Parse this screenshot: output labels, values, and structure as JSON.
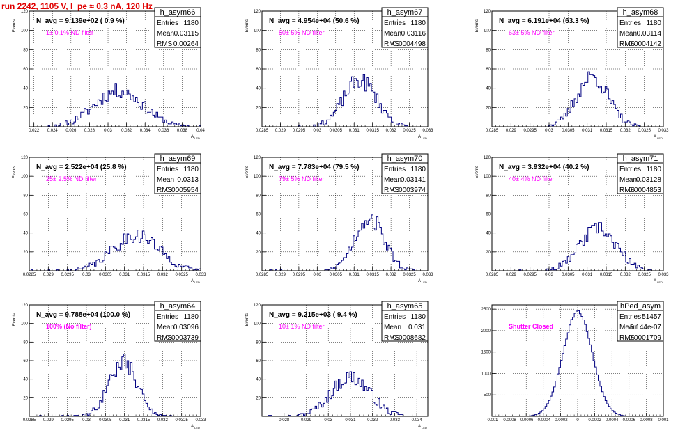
{
  "page": {
    "title": "run 2242,  1105 V, I_pe ≈ 0.3 nA, 120 Hz"
  },
  "chart_data": [
    {
      "type": "histogram",
      "name": "h_asym66",
      "navg": "N_avg = 9.139e+02 ( 0.9 %)",
      "filter": "1± 0.1% ND filter",
      "stats": {
        "entries": "1180",
        "mean": "0.03115",
        "rms": "0.00264"
      },
      "xlabel": "A",
      "xlabel_sub": "LED",
      "ylabel": "Events",
      "xlim": [
        0.0215,
        0.04
      ],
      "ylim": [
        0,
        120
      ],
      "xticks": [
        "0.022",
        "0.024",
        "0.026",
        "0.028",
        "0.03",
        "0.032",
        "0.034",
        "0.036",
        "0.038",
        "0.04"
      ],
      "yticks": [
        "20",
        "40",
        "60",
        "80",
        "100",
        "120"
      ],
      "gen": {
        "mean": 0.03115,
        "sigma": 0.00264,
        "peak": 37,
        "bins": 100,
        "seed": 11
      }
    },
    {
      "type": "histogram",
      "name": "h_asym67",
      "navg": "N_avg = 4.954e+04 (50.6 %)",
      "filter": "50± 5% ND filter",
      "stats": {
        "entries": "1180",
        "mean": "0.03116",
        "rms": "0.0004498"
      },
      "xlabel": "A",
      "xlabel_sub": "LED",
      "ylabel": "Events",
      "xlim": [
        0.0285,
        0.033
      ],
      "ylim": [
        0,
        120
      ],
      "xticks": [
        "0.0285",
        "0.029",
        "0.0295",
        "0.03",
        "0.0305",
        "0.031",
        "0.0315",
        "0.032",
        "0.0325",
        "0.033"
      ],
      "yticks": [
        "20",
        "40",
        "60",
        "80",
        "100",
        "120"
      ],
      "gen": {
        "mean": 0.03116,
        "sigma": 0.00045,
        "peak": 48,
        "bins": 100,
        "seed": 23
      }
    },
    {
      "type": "histogram",
      "name": "h_asym68",
      "navg": "N_avg = 6.191e+04 (63.3 %)",
      "filter": "63± 5% ND filter",
      "stats": {
        "entries": "1180",
        "mean": "0.03114",
        "rms": "0.0004142"
      },
      "xlabel": "A",
      "xlabel_sub": "LED",
      "ylabel": "Events",
      "xlim": [
        0.0285,
        0.033
      ],
      "ylim": [
        0,
        120
      ],
      "xticks": [
        "0.0285",
        "0.029",
        "0.0295",
        "0.03",
        "0.0305",
        "0.031",
        "0.0315",
        "0.032",
        "0.0325",
        "0.033"
      ],
      "yticks": [
        "20",
        "40",
        "60",
        "80",
        "100",
        "120"
      ],
      "gen": {
        "mean": 0.03114,
        "sigma": 0.00041,
        "peak": 52,
        "bins": 100,
        "seed": 37
      }
    },
    {
      "type": "histogram",
      "name": "h_asym69",
      "navg": "N_avg = 2.522e+04 (25.8 %)",
      "filter": "25± 2.5% ND filter",
      "stats": {
        "entries": "1180",
        "mean": "0.0313",
        "rms": "0.0005954"
      },
      "xlabel": "A",
      "xlabel_sub": "LED",
      "ylabel": "Events",
      "xlim": [
        0.0285,
        0.033
      ],
      "ylim": [
        0,
        120
      ],
      "xticks": [
        "0.0285",
        "0.029",
        "0.0295",
        "0.03",
        "0.0305",
        "0.031",
        "0.0315",
        "0.032",
        "0.0325",
        "0.033"
      ],
      "yticks": [
        "20",
        "40",
        "60",
        "80",
        "100",
        "120"
      ],
      "gen": {
        "mean": 0.0313,
        "sigma": 0.0006,
        "peak": 38,
        "bins": 100,
        "seed": 41
      }
    },
    {
      "type": "histogram",
      "name": "h_asym70",
      "navg": "N_avg = 7.783e+04 (79.5 %)",
      "filter": "79± 5% ND filter",
      "stats": {
        "entries": "1180",
        "mean": "0.03141",
        "rms": "0.0003974"
      },
      "xlabel": "A",
      "xlabel_sub": "LED",
      "ylabel": "Events",
      "xlim": [
        0.0285,
        0.033
      ],
      "ylim": [
        0,
        120
      ],
      "xticks": [
        "0.0285",
        "0.029",
        "0.0295",
        "0.03",
        "0.0305",
        "0.031",
        "0.0315",
        "0.032",
        "0.0325",
        "0.033"
      ],
      "yticks": [
        "20",
        "40",
        "60",
        "80",
        "100",
        "120"
      ],
      "gen": {
        "mean": 0.03141,
        "sigma": 0.0004,
        "peak": 56,
        "bins": 100,
        "seed": 53
      }
    },
    {
      "type": "histogram",
      "name": "h_asym71",
      "navg": "N_avg = 3.932e+04 (40.2 %)",
      "filter": "40± 4% ND filter",
      "stats": {
        "entries": "1180",
        "mean": "0.03128",
        "rms": "0.0004853"
      },
      "xlabel": "A",
      "xlabel_sub": "LED",
      "ylabel": "Events",
      "xlim": [
        0.0285,
        0.033
      ],
      "ylim": [
        0,
        120
      ],
      "xticks": [
        "0.0285",
        "0.029",
        "0.0295",
        "0.03",
        "0.0305",
        "0.031",
        "0.0315",
        "0.032",
        "0.0325",
        "0.033"
      ],
      "yticks": [
        "20",
        "40",
        "60",
        "80",
        "100",
        "120"
      ],
      "gen": {
        "mean": 0.03128,
        "sigma": 0.00048,
        "peak": 44,
        "bins": 100,
        "seed": 67
      }
    },
    {
      "type": "histogram",
      "name": "h_asym64",
      "navg": "N_avg = 9.788e+04 (100.0 %)",
      "filter": "100% (No filter)",
      "filter_bold": true,
      "stats": {
        "entries": "1180",
        "mean": "0.03096",
        "rms": "0.0003739"
      },
      "xlabel": "A",
      "xlabel_sub": "LED",
      "ylabel": "Events",
      "xlim": [
        0.0285,
        0.033
      ],
      "ylim": [
        0,
        120
      ],
      "xticks": [
        "0.0285",
        "0.029",
        "0.0295",
        "0.03",
        "0.0305",
        "0.031",
        "0.0315",
        "0.032",
        "0.0325",
        "0.033"
      ],
      "yticks": [
        "20",
        "40",
        "60",
        "80",
        "100",
        "120"
      ],
      "gen": {
        "mean": 0.03096,
        "sigma": 0.00037,
        "peak": 58,
        "bins": 100,
        "seed": 79
      }
    },
    {
      "type": "histogram",
      "name": "h_asym65",
      "navg": "N_avg = 9.215e+03 ( 9.4 %)",
      "filter": "10± 1% ND filter",
      "stats": {
        "entries": "1180",
        "mean": "0.031",
        "rms": "0.0008682"
      },
      "xlabel": "A",
      "xlabel_sub": "LED",
      "ylabel": "Events",
      "xlim": [
        0.027,
        0.0345
      ],
      "ylim": [
        0,
        120
      ],
      "xticks": [
        "0.028",
        "0.029",
        "0.03",
        "0.031",
        "0.032",
        "0.033",
        "0.034"
      ],
      "yticks": [
        "20",
        "40",
        "60",
        "80",
        "100",
        "120"
      ],
      "gen": {
        "mean": 0.031,
        "sigma": 0.00087,
        "peak": 42,
        "bins": 100,
        "seed": 97
      }
    },
    {
      "type": "histogram",
      "name": "hPed_asym",
      "navg": "",
      "filter": "Shutter Closed",
      "filter_bold": true,
      "stats": {
        "entries": "51457",
        "mean": "-5.144e-07",
        "rms": "0.0001709"
      },
      "xlabel": "",
      "xlabel_sub": "",
      "ylabel": "",
      "xlim": [
        -0.001,
        0.001
      ],
      "ylim": [
        0,
        2600
      ],
      "xticks": [
        "-0.001",
        "-0.0008",
        "-0.0006",
        "-0.0004",
        "-0.0002",
        "0",
        "0.0002",
        "0.0004",
        "0.0006",
        "0.0008",
        "0.001"
      ],
      "yticks": [
        "500",
        "1000",
        "1500",
        "2000",
        "2500"
      ],
      "gen": {
        "mean": 0.0,
        "sigma": 0.00017,
        "peak": 2440,
        "bins": 100,
        "seed": 7,
        "smooth": true
      }
    }
  ],
  "colors": {
    "hist": "#000080",
    "grid": "#000000",
    "title": "#e00000",
    "filter": "#ff00ff"
  }
}
